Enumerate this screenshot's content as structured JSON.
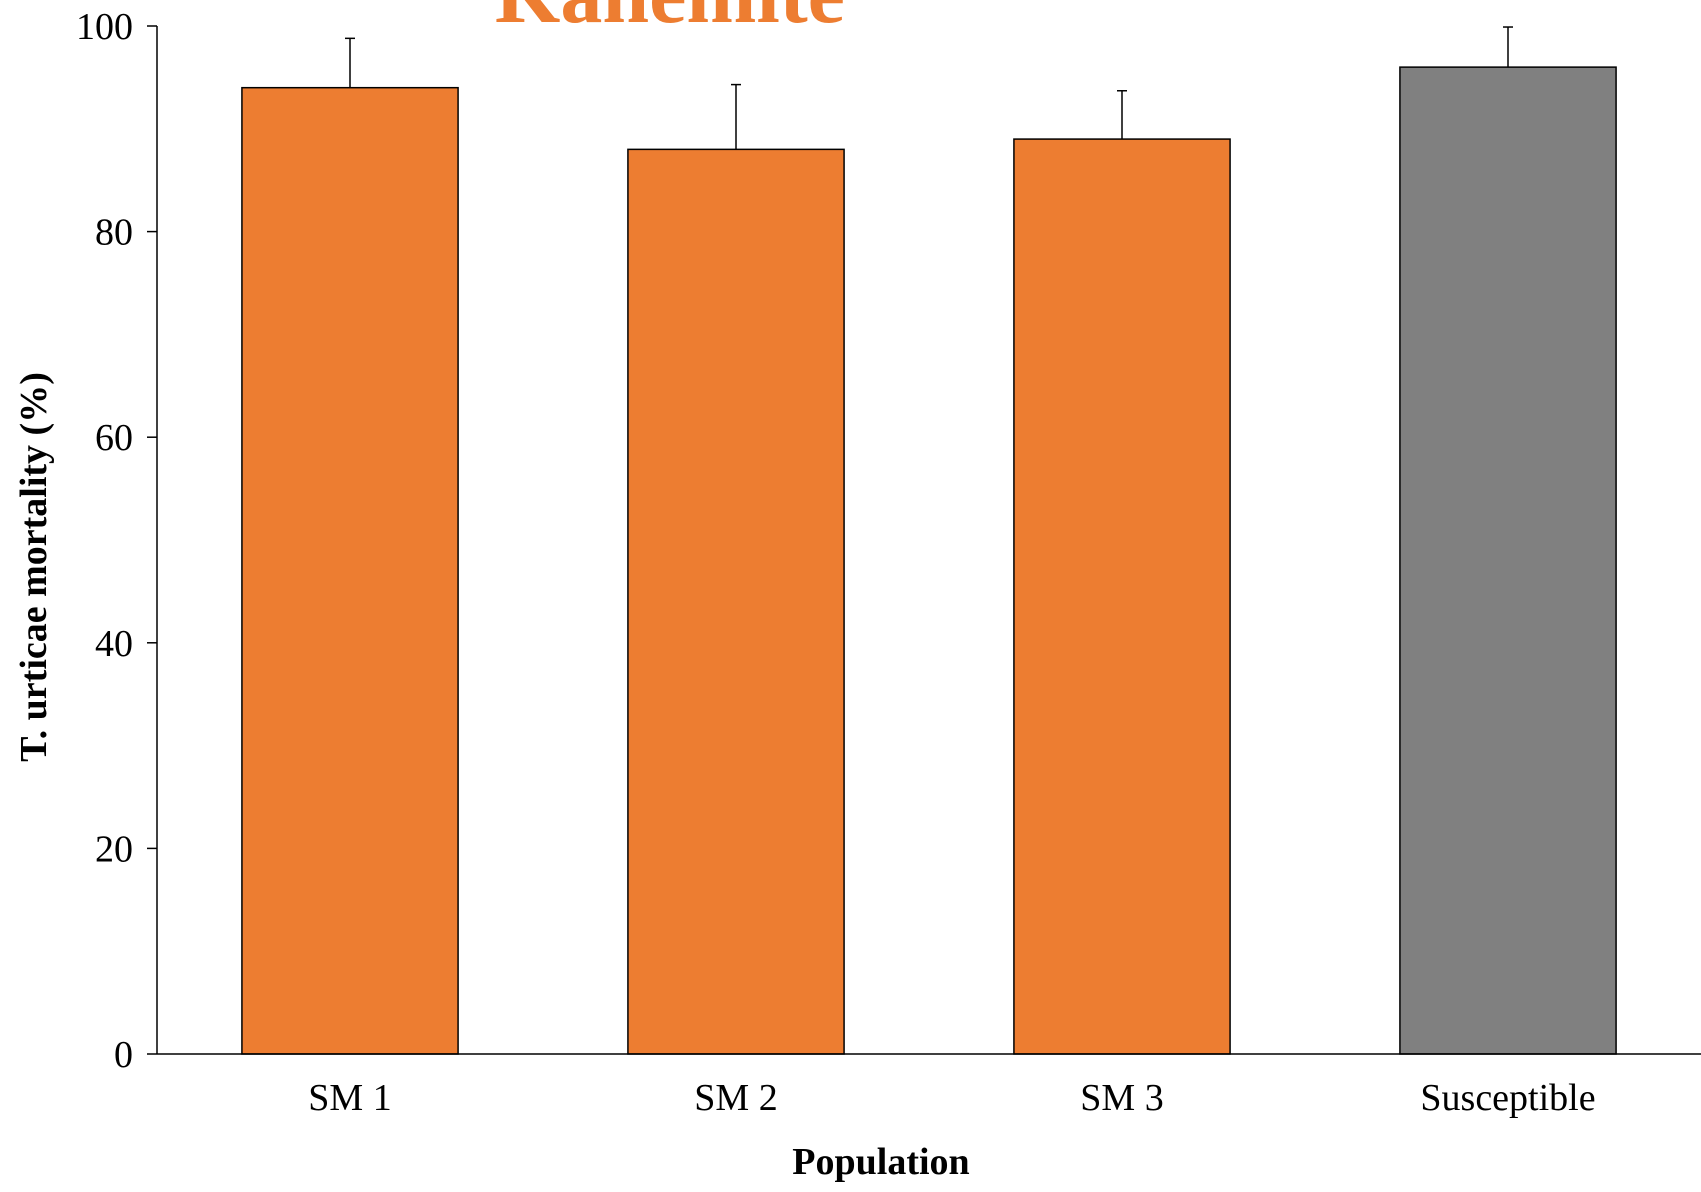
{
  "chart_data": {
    "type": "bar",
    "title": "Kanemite",
    "xlabel": "Population",
    "ylabel": "T. urticae mortality (%)",
    "categories": [
      "SM 1",
      "SM 2",
      "SM 3",
      "Susceptible"
    ],
    "values": [
      94,
      88,
      89,
      96
    ],
    "error": [
      4.8,
      6.3,
      4.7,
      3.9
    ],
    "colors": [
      "#ED7D31",
      "#ED7D31",
      "#ED7D31",
      "#808080"
    ],
    "title_color": "#ED7D31",
    "ylim": [
      0,
      100
    ],
    "yticks": [
      0,
      20,
      40,
      60,
      80,
      100
    ],
    "grid": false,
    "legend": "none"
  }
}
